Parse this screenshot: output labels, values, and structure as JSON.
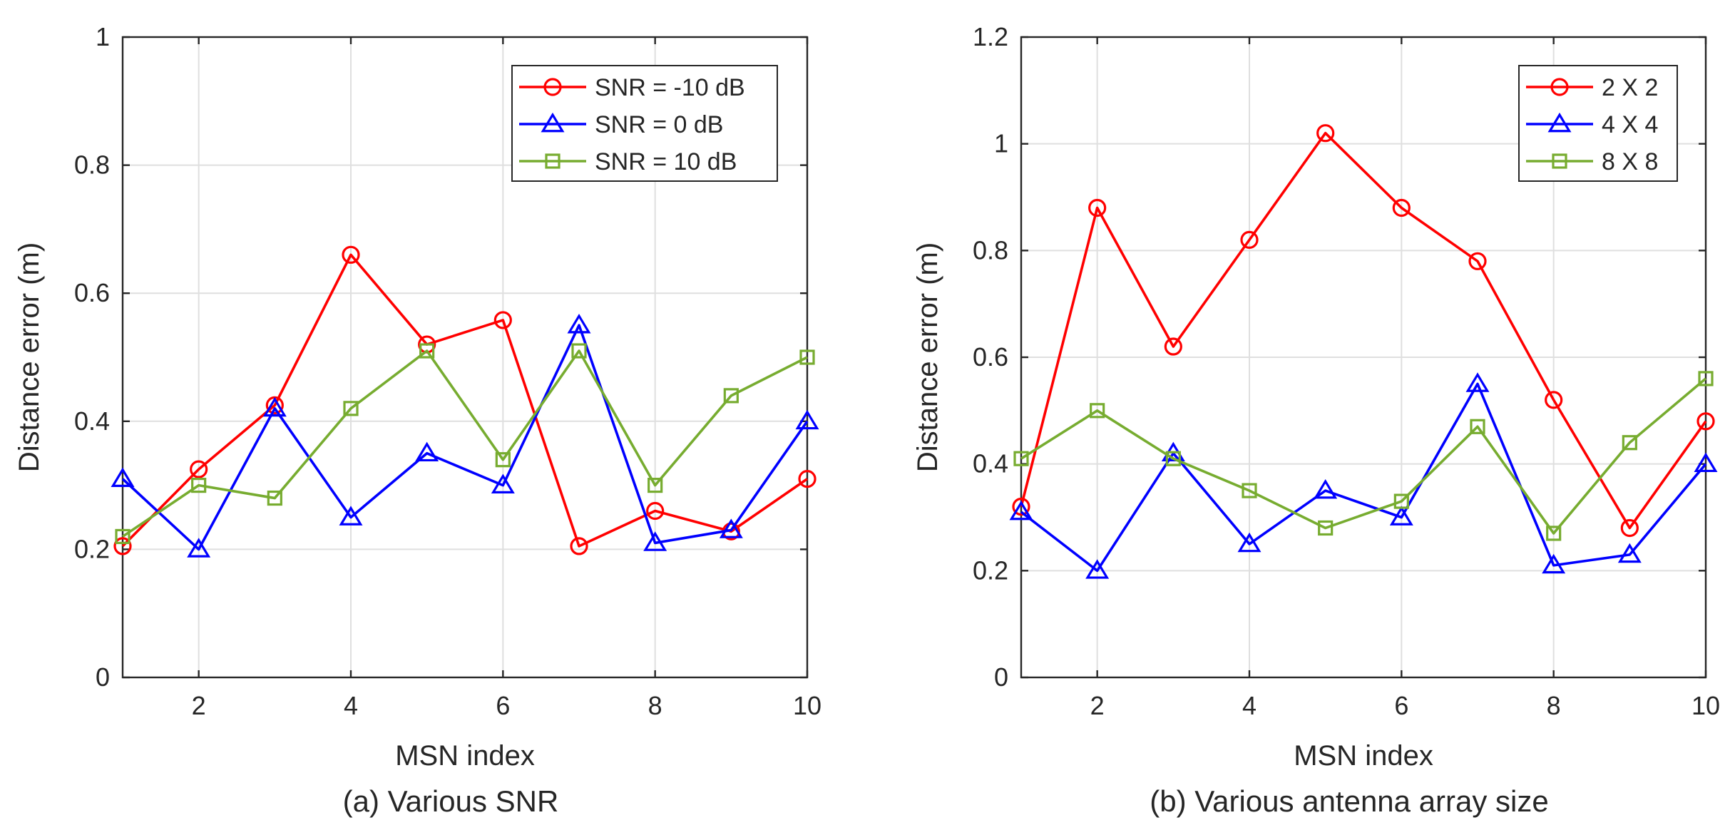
{
  "chart_data": [
    {
      "type": "line",
      "caption": "(a) Various SNR",
      "xlabel": "MSN index",
      "ylabel": "Distance error (m)",
      "xlim": [
        1,
        10
      ],
      "ylim": [
        0,
        1
      ],
      "xticks": [
        2,
        4,
        6,
        8,
        10
      ],
      "yticks": [
        0,
        0.2,
        0.4,
        0.6,
        0.8,
        1
      ],
      "ytick_labels": [
        "0",
        "0.2",
        "0.4",
        "0.6",
        "0.8",
        "1"
      ],
      "grid": true,
      "legend_position": "top-right",
      "x": [
        1,
        2,
        3,
        4,
        5,
        6,
        7,
        8,
        9,
        10
      ],
      "series": [
        {
          "name": "SNR = -10 dB",
          "color": "#ff0000",
          "marker": "circle",
          "values": [
            0.205,
            0.325,
            0.425,
            0.66,
            0.52,
            0.558,
            0.205,
            0.26,
            0.228,
            0.31
          ]
        },
        {
          "name": "SNR = 0 dB",
          "color": "#0000ff",
          "marker": "triangle",
          "values": [
            0.31,
            0.2,
            0.42,
            0.25,
            0.35,
            0.3,
            0.55,
            0.21,
            0.23,
            0.4
          ]
        },
        {
          "name": "SNR = 10 dB",
          "color": "#77ac30",
          "marker": "square",
          "values": [
            0.22,
            0.3,
            0.28,
            0.42,
            0.51,
            0.34,
            0.51,
            0.3,
            0.44,
            0.5
          ]
        }
      ]
    },
    {
      "type": "line",
      "caption": "(b) Various antenna array size",
      "xlabel": "MSN index",
      "ylabel": "Distance error (m)",
      "xlim": [
        1,
        10
      ],
      "ylim": [
        0,
        1.2
      ],
      "xticks": [
        2,
        4,
        6,
        8,
        10
      ],
      "yticks": [
        0,
        0.2,
        0.4,
        0.6,
        0.8,
        1,
        1.2
      ],
      "ytick_labels": [
        "0",
        "0.2",
        "0.4",
        "0.6",
        "0.8",
        "1",
        "1.2"
      ],
      "grid": true,
      "legend_position": "top-right",
      "x": [
        1,
        2,
        3,
        4,
        5,
        6,
        7,
        8,
        9,
        10
      ],
      "series": [
        {
          "name": "2 X 2",
          "color": "#ff0000",
          "marker": "circle",
          "values": [
            0.32,
            0.88,
            0.62,
            0.82,
            1.02,
            0.88,
            0.78,
            0.52,
            0.28,
            0.48
          ]
        },
        {
          "name": "4 X 4",
          "color": "#0000ff",
          "marker": "triangle",
          "values": [
            0.31,
            0.2,
            0.42,
            0.25,
            0.35,
            0.3,
            0.55,
            0.21,
            0.23,
            0.4
          ]
        },
        {
          "name": "8 X 8",
          "color": "#77ac30",
          "marker": "square",
          "values": [
            0.41,
            0.5,
            0.41,
            0.35,
            0.28,
            0.33,
            0.47,
            0.27,
            0.44,
            0.56
          ]
        }
      ]
    }
  ]
}
